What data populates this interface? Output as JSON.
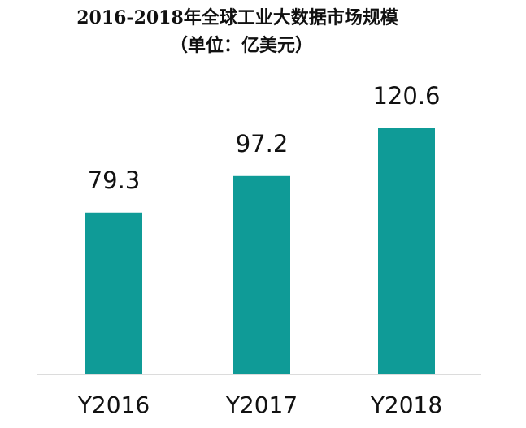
{
  "chart_data": {
    "type": "bar",
    "title": "2016-2018年全球工业大数据市场规模",
    "subtitle": "（单位：亿美元）",
    "categories": [
      "Y2016",
      "Y2017",
      "Y2018"
    ],
    "values": [
      79.3,
      97.2,
      120.6
    ],
    "color": "#0f9b97"
  }
}
